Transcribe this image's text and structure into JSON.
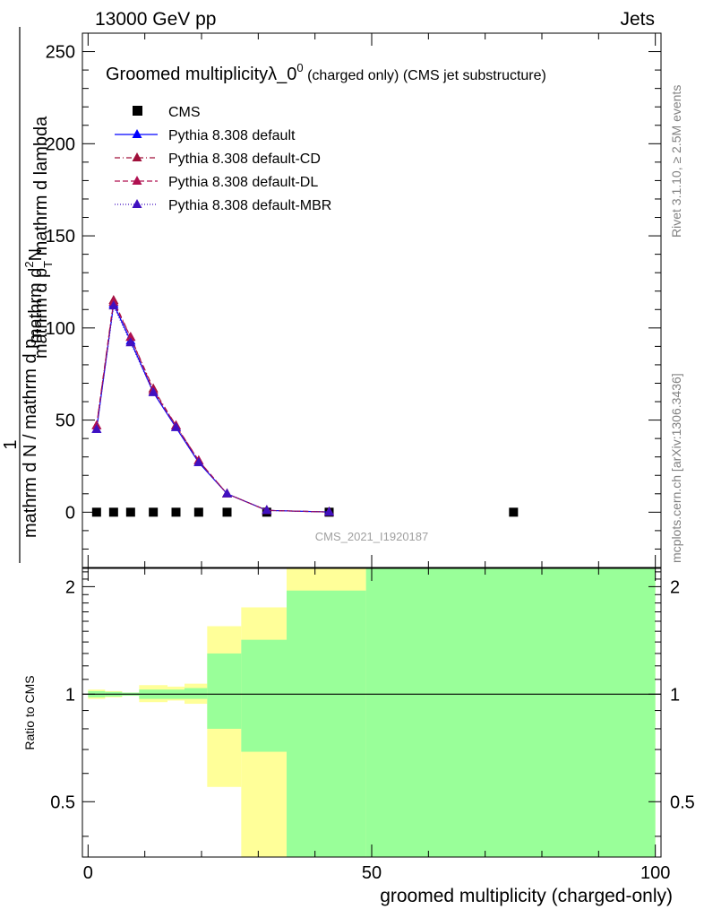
{
  "header": {
    "energy_label": "13000 GeV pp",
    "category_label": "Jets"
  },
  "side_labels": {
    "rivet": "Rivet 3.1.10, ≥ 2.5M events",
    "mcplots": "mcplots.cern.ch [arXiv:1306.3436]"
  },
  "watermark": "CMS_2021_I1920187",
  "chart_data": [
    {
      "type": "scatter",
      "title": "Groomed multiplicityλ_0⁰ (charged only) (CMS jet substructure)",
      "title_main": "Groomed multiplicityλ_0",
      "title_sup": "0",
      "title_tail": " (charged only) (CMS jet substructure)",
      "ylabel_line1": "mathrm d",
      "ylabel_sup": "2",
      "ylabel_line1_tail": "N",
      "ylabel_line2": "mathrm d p",
      "ylabel_line2_sub": "T",
      "ylabel_line2_tail": " mathrm d lambda",
      "ylabel_frac_num": "1",
      "ylabel_frac_den": "mathrm d N / mathrm d p",
      "ylabel_frac_den_sub": "T",
      "xlim": [
        -1,
        101
      ],
      "ylim": [
        -30,
        260
      ],
      "yticks": [
        0,
        50,
        100,
        150,
        200,
        250
      ],
      "ytick_labels": [
        "0",
        "50",
        "100",
        "150",
        "200",
        "250"
      ],
      "legend_position": "top-left",
      "series": [
        {
          "name": "CMS",
          "color": "#000000",
          "marker": "square",
          "line": "none",
          "x": [
            1.5,
            4.5,
            7.5,
            11.5,
            15.5,
            19.5,
            24.5,
            31.5,
            42.5,
            75
          ],
          "y": [
            0,
            0,
            0,
            0,
            0,
            0,
            0,
            0,
            0,
            0
          ]
        },
        {
          "name": "Pythia 8.308 default",
          "color": "#0000ff",
          "marker": "triangle",
          "line": "solid",
          "x": [
            1.5,
            4.5,
            7.5,
            11.5,
            15.5,
            19.5,
            24.5,
            31.5,
            42.5
          ],
          "y": [
            45,
            113,
            93,
            65,
            46,
            27,
            10,
            1,
            0.1
          ]
        },
        {
          "name": "Pythia 8.308 default-CD",
          "color": "#a0103a",
          "marker": "triangle",
          "line": "dashdot",
          "x": [
            1.5,
            4.5,
            7.5,
            11.5,
            15.5,
            19.5,
            24.5,
            31.5,
            42.5
          ],
          "y": [
            47,
            115,
            95,
            67,
            47,
            28,
            10,
            1,
            0.1
          ]
        },
        {
          "name": "Pythia 8.308 default-DL",
          "color": "#b01050",
          "marker": "triangle",
          "line": "dashed",
          "x": [
            1.5,
            4.5,
            7.5,
            11.5,
            15.5,
            19.5,
            24.5,
            31.5,
            42.5
          ],
          "y": [
            47,
            114,
            95,
            66,
            47,
            28,
            10,
            1,
            0.1
          ]
        },
        {
          "name": "Pythia 8.308 default-MBR",
          "color": "#4010c0",
          "marker": "triangle",
          "line": "dotted",
          "x": [
            1.5,
            4.5,
            7.5,
            11.5,
            15.5,
            19.5,
            24.5,
            31.5,
            42.5
          ],
          "y": [
            45,
            112,
            92,
            65,
            46,
            27,
            10,
            1,
            0.1
          ]
        }
      ]
    },
    {
      "type": "area",
      "title": "",
      "ylabel": "Ratio to CMS",
      "xlabel": "groomed multiplicity (charged-only)",
      "xlim": [
        -1,
        101
      ],
      "ylim": [
        0.35,
        2.25
      ],
      "xticks": [
        0,
        50,
        100
      ],
      "xtick_labels": [
        "0",
        "50",
        "100"
      ],
      "yticks": [
        0.5,
        1,
        2
      ],
      "ytick_labels": [
        "0.5",
        "1",
        "2"
      ],
      "reference_line": 1,
      "bands": [
        {
          "name": "yellow",
          "color": "#ffff99",
          "bins": [
            {
              "x0": 0,
              "x1": 3,
              "lo": 0.97,
              "hi": 1.03
            },
            {
              "x0": 3,
              "x1": 6,
              "lo": 0.98,
              "hi": 1.02
            },
            {
              "x0": 6,
              "x1": 9,
              "lo": 0.99,
              "hi": 1.01
            },
            {
              "x0": 9,
              "x1": 14,
              "lo": 0.95,
              "hi": 1.06
            },
            {
              "x0": 14,
              "x1": 17,
              "lo": 0.96,
              "hi": 1.05
            },
            {
              "x0": 17,
              "x1": 21,
              "lo": 0.94,
              "hi": 1.07
            },
            {
              "x0": 21,
              "x1": 27,
              "lo": 0.55,
              "hi": 1.55
            },
            {
              "x0": 27,
              "x1": 35,
              "lo": 0.35,
              "hi": 1.75
            },
            {
              "x0": 35,
              "x1": 49,
              "lo": 0.35,
              "hi": 2.25
            },
            {
              "x0": 49,
              "x1": 100,
              "lo": 0.35,
              "hi": 2.25
            }
          ]
        },
        {
          "name": "green",
          "color": "#99ff99",
          "bins": [
            {
              "x0": 0,
              "x1": 3,
              "lo": 0.98,
              "hi": 1.02
            },
            {
              "x0": 3,
              "x1": 6,
              "lo": 0.985,
              "hi": 1.015
            },
            {
              "x0": 6,
              "x1": 9,
              "lo": 0.99,
              "hi": 1.01
            },
            {
              "x0": 9,
              "x1": 14,
              "lo": 0.97,
              "hi": 1.03
            },
            {
              "x0": 14,
              "x1": 17,
              "lo": 0.97,
              "hi": 1.03
            },
            {
              "x0": 17,
              "x1": 21,
              "lo": 0.97,
              "hi": 1.04
            },
            {
              "x0": 21,
              "x1": 27,
              "lo": 0.8,
              "hi": 1.3
            },
            {
              "x0": 27,
              "x1": 35,
              "lo": 0.69,
              "hi": 1.42
            },
            {
              "x0": 35,
              "x1": 49,
              "lo": 0.35,
              "hi": 1.95
            },
            {
              "x0": 49,
              "x1": 100,
              "lo": 0.35,
              "hi": 2.25
            }
          ]
        }
      ]
    }
  ]
}
